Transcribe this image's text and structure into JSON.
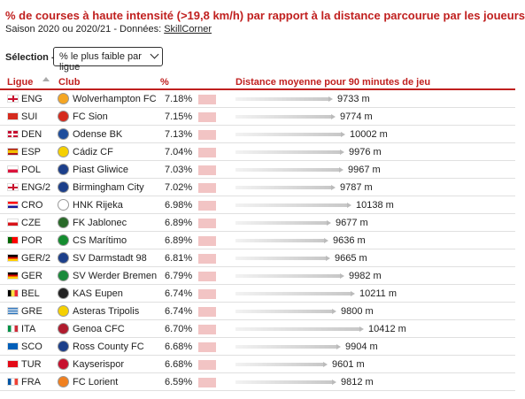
{
  "header": {
    "title": "% de courses à haute intensité (>19,8 km/h) par rapport à la distance parcourue par les joueurs",
    "subtitle_prefix": "Saison 2020 ou 2020/21 - Données: ",
    "subtitle_link": "SkillCorner"
  },
  "selection": {
    "label": "Sélection ->",
    "value": "% le plus faible par ligue"
  },
  "columns": {
    "league": "Ligue",
    "club": "Club",
    "pct": "%",
    "distance": "Distance moyenne pour 90 minutes de jeu"
  },
  "colors": {
    "accent": "#c0201f",
    "pct_bar": "#f2c4c4"
  },
  "dist_scale_max": 10412,
  "rows": [
    {
      "code": "ENG",
      "club": "Wolverhampton FC",
      "pct": "7.18%",
      "pct_value": 7.18,
      "distance": "9733 m",
      "distance_value": 9733,
      "flag": "flag-eng",
      "crest": "wolverhampton-crest-icon"
    },
    {
      "code": "SUI",
      "club": "FC Sion",
      "pct": "7.15%",
      "pct_value": 7.15,
      "distance": "9774 m",
      "distance_value": 9774,
      "flag": "flag-sui",
      "crest": "fc-sion-crest-icon"
    },
    {
      "code": "DEN",
      "club": "Odense BK",
      "pct": "7.13%",
      "pct_value": 7.13,
      "distance": "10002 m",
      "distance_value": 10002,
      "flag": "flag-den",
      "crest": "odense-crest-icon"
    },
    {
      "code": "ESP",
      "club": "Cádiz CF",
      "pct": "7.04%",
      "pct_value": 7.04,
      "distance": "9976 m",
      "distance_value": 9976,
      "flag": "flag-esp",
      "crest": "cadiz-crest-icon"
    },
    {
      "code": "POL",
      "club": "Piast Gliwice",
      "pct": "7.03%",
      "pct_value": 7.03,
      "distance": "9967 m",
      "distance_value": 9967,
      "flag": "flag-pol",
      "crest": "piast-crest-icon"
    },
    {
      "code": "ENG/2",
      "club": "Birmingham City",
      "pct": "7.02%",
      "pct_value": 7.02,
      "distance": "9787 m",
      "distance_value": 9787,
      "flag": "flag-eng",
      "crest": "birmingham-crest-icon"
    },
    {
      "code": "CRO",
      "club": "HNK Rijeka",
      "pct": "6.98%",
      "pct_value": 6.98,
      "distance": "10138 m",
      "distance_value": 10138,
      "flag": "flag-cro",
      "crest": "rijeka-crest-icon"
    },
    {
      "code": "CZE",
      "club": "FK Jablonec",
      "pct": "6.89%",
      "pct_value": 6.89,
      "distance": "9677 m",
      "distance_value": 9677,
      "flag": "flag-cze",
      "crest": "jablonec-crest-icon"
    },
    {
      "code": "POR",
      "club": "CS Marítimo",
      "pct": "6.89%",
      "pct_value": 6.89,
      "distance": "9636 m",
      "distance_value": 9636,
      "flag": "flag-por",
      "crest": "maritimo-crest-icon"
    },
    {
      "code": "GER/2",
      "club": "SV Darmstadt 98",
      "pct": "6.81%",
      "pct_value": 6.81,
      "distance": "9665 m",
      "distance_value": 9665,
      "flag": "flag-ger",
      "crest": "darmstadt-crest-icon"
    },
    {
      "code": "GER",
      "club": "SV Werder Bremen",
      "pct": "6.79%",
      "pct_value": 6.79,
      "distance": "9982 m",
      "distance_value": 9982,
      "flag": "flag-ger",
      "crest": "werder-crest-icon"
    },
    {
      "code": "BEL",
      "club": "KAS Eupen",
      "pct": "6.74%",
      "pct_value": 6.74,
      "distance": "10211 m",
      "distance_value": 10211,
      "flag": "flag-bel",
      "crest": "eupen-crest-icon"
    },
    {
      "code": "GRE",
      "club": "Asteras Tripolis",
      "pct": "6.74%",
      "pct_value": 6.74,
      "distance": "9800 m",
      "distance_value": 9800,
      "flag": "flag-gre",
      "crest": "asteras-crest-icon"
    },
    {
      "code": "ITA",
      "club": "Genoa CFC",
      "pct": "6.70%",
      "pct_value": 6.7,
      "distance": "10412 m",
      "distance_value": 10412,
      "flag": "flag-ita",
      "crest": "genoa-crest-icon"
    },
    {
      "code": "SCO",
      "club": "Ross County FC",
      "pct": "6.68%",
      "pct_value": 6.68,
      "distance": "9904 m",
      "distance_value": 9904,
      "flag": "flag-sco",
      "crest": "ross-county-crest-icon"
    },
    {
      "code": "TUR",
      "club": "Kayserispor",
      "pct": "6.68%",
      "pct_value": 6.68,
      "distance": "9601 m",
      "distance_value": 9601,
      "flag": "flag-tur",
      "crest": "kayserispor-crest-icon"
    },
    {
      "code": "FRA",
      "club": "FC Lorient",
      "pct": "6.59%",
      "pct_value": 6.59,
      "distance": "9812 m",
      "distance_value": 9812,
      "flag": "flag-fra",
      "crest": "lorient-crest-icon"
    }
  ]
}
